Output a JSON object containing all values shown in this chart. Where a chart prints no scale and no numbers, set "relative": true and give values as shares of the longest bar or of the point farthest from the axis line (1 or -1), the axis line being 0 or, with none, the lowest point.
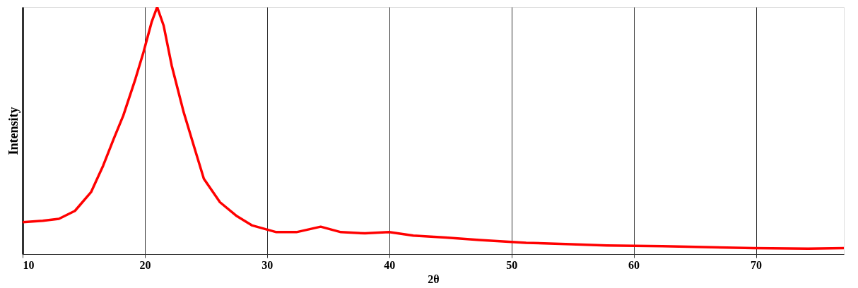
{
  "chart_data": {
    "type": "line",
    "xlabel": "2θ",
    "ylabel": "Intensity",
    "relative": true,
    "x": [
      10.0,
      11.65,
      12.97,
      14.28,
      15.6,
      16.59,
      17.45,
      18.24,
      19.23,
      19.89,
      20.55,
      21.01,
      21.54,
      22.2,
      23.18,
      24.17,
      24.83,
      26.15,
      27.47,
      28.79,
      30.76,
      32.41,
      34.39,
      36.04,
      38.02,
      39.99,
      41.97,
      44.61,
      47.38,
      51.2,
      54.89,
      57.79,
      62.34,
      64.38,
      69.79,
      74.27,
      77.2
    ],
    "series": [
      {
        "color": "#ff0000",
        "values": [
          0.129,
          0.135,
          0.143,
          0.175,
          0.251,
          0.358,
          0.466,
          0.561,
          0.709,
          0.817,
          0.938,
          1.0,
          0.925,
          0.763,
          0.574,
          0.412,
          0.305,
          0.21,
          0.156,
          0.116,
          0.089,
          0.089,
          0.111,
          0.089,
          0.084,
          0.089,
          0.075,
          0.067,
          0.057,
          0.046,
          0.04,
          0.035,
          0.032,
          0.03,
          0.024,
          0.022,
          0.024
        ]
      }
    ],
    "xlim": [
      10,
      77.2
    ],
    "xticks": [
      10,
      20,
      30,
      40,
      50,
      60,
      70
    ],
    "grid": "x",
    "line_style": "solid",
    "marker": "none"
  }
}
